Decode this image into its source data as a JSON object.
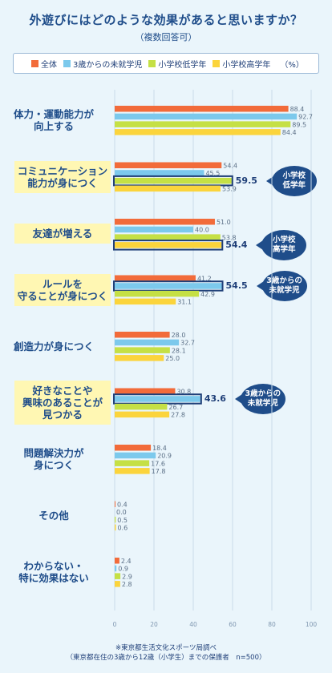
{
  "title": "外遊びにはどのような効果があると思いますか？",
  "subtitle": "（複数回答可）",
  "legend_unit": "（%）",
  "colors": {
    "all": "#f26b3a",
    "preschool": "#7cc9ec",
    "lower": "#c5e045",
    "upper": "#fbd43c"
  },
  "footnote_line1": "※東京都生活文化スポーツ局調べ",
  "footnote_line2": "（東京都在住の3歳から12歳（小学生）までの保護者　n=500）",
  "chart_data": {
    "type": "bar",
    "orientation": "horizontal",
    "title": "外遊びにはどのような効果があると思いますか？",
    "subtitle": "（複数回答可）",
    "unit": "（%）",
    "xlim": [
      0,
      100
    ],
    "xticks": [
      0,
      20,
      40,
      60,
      80,
      100
    ],
    "series": [
      {
        "name": "全体",
        "color": "#f26b3a"
      },
      {
        "name": "3歳からの未就学児",
        "color": "#7cc9ec"
      },
      {
        "name": "小学校低学年",
        "color": "#c5e045"
      },
      {
        "name": "小学校高学年",
        "color": "#fbd43c"
      }
    ],
    "categories": [
      {
        "label": "体力・運動能力が\n向上する",
        "values": [
          88.4,
          92.7,
          89.5,
          84.4
        ],
        "highlight": false,
        "emph": null,
        "callout": null
      },
      {
        "label": "コミュニケーション\n能力が身につく",
        "values": [
          54.4,
          45.5,
          59.5,
          53.9
        ],
        "highlight": true,
        "emph": 2,
        "callout": "小学校\n低学年"
      },
      {
        "label": "友達が増える",
        "values": [
          51.0,
          40.0,
          53.8,
          54.4
        ],
        "highlight": true,
        "emph": 3,
        "callout": "小学校\n高学年"
      },
      {
        "label": "ルールを\n守ることが身につく",
        "values": [
          41.2,
          54.5,
          42.9,
          31.1
        ],
        "highlight": true,
        "emph": 1,
        "callout": "3歳からの\n未就学児"
      },
      {
        "label": "創造力が身につく",
        "values": [
          28.0,
          32.7,
          28.1,
          25.0
        ],
        "highlight": false,
        "emph": null,
        "callout": null
      },
      {
        "label": "好きなことや\n興味のあることが\n見つかる",
        "values": [
          30.8,
          43.6,
          26.7,
          27.8
        ],
        "highlight": true,
        "emph": 1,
        "callout": "3歳からの\n未就学児"
      },
      {
        "label": "問題解決力が\n身につく",
        "values": [
          18.4,
          20.9,
          17.6,
          17.8
        ],
        "highlight": false,
        "emph": null,
        "callout": null
      },
      {
        "label": "その他",
        "values": [
          0.4,
          0.0,
          0.5,
          0.6
        ],
        "highlight": false,
        "emph": null,
        "callout": null
      },
      {
        "label": "わからない・\n特に効果はない",
        "values": [
          2.4,
          0.9,
          2.9,
          2.8
        ],
        "highlight": false,
        "emph": null,
        "callout": null
      }
    ]
  }
}
